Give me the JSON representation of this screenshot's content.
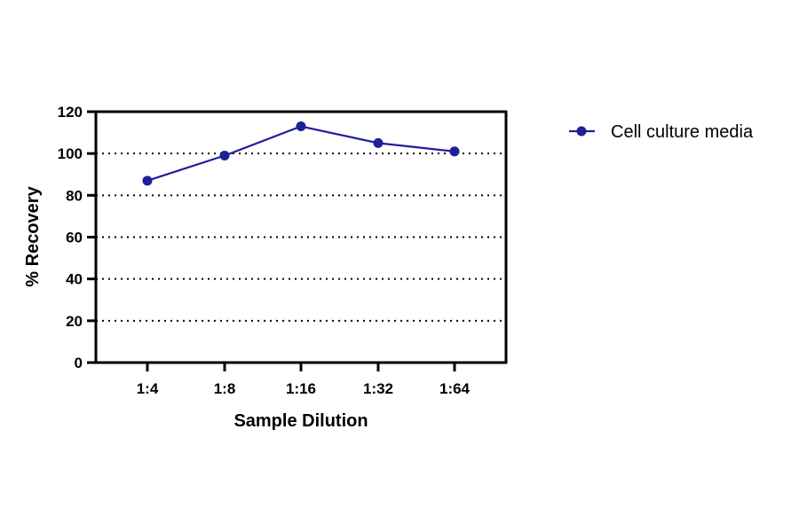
{
  "chart_data": {
    "type": "line",
    "title": "",
    "xlabel": "Sample Dilution",
    "ylabel": "% Recovery",
    "categories": [
      "1:4",
      "1:8",
      "1:16",
      "1:32",
      "1:64"
    ],
    "ylim": [
      0,
      120
    ],
    "yticks": [
      "0",
      "20",
      "40",
      "60",
      "80",
      "100",
      "120"
    ],
    "grid": "horizontal dotted",
    "legend_position": "right",
    "series": [
      {
        "name": "Cell culture media",
        "values": [
          87,
          99,
          113,
          105,
          101
        ],
        "color": "#1f1f9a"
      }
    ]
  }
}
